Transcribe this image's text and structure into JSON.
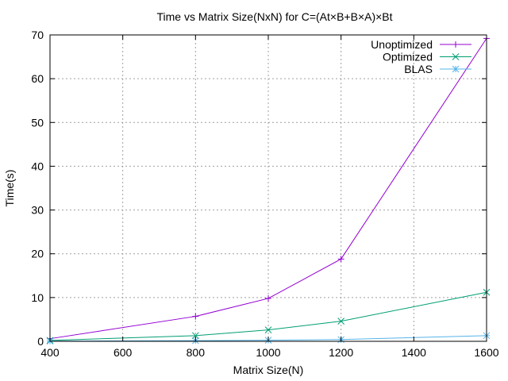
{
  "chart_data": {
    "type": "line",
    "title": "Time vs Matrix Size(NxN) for C=(At×B+B×A)×Bt",
    "xlabel": "Matrix Size(N)",
    "ylabel": "Time(s)",
    "xlim": [
      400,
      1600
    ],
    "ylim": [
      0,
      70
    ],
    "x_ticks": [
      400,
      600,
      800,
      1000,
      1200,
      1400,
      1600
    ],
    "y_ticks": [
      0,
      10,
      20,
      30,
      40,
      50,
      60,
      70
    ],
    "grid": true,
    "legend_position": "top-right",
    "series": [
      {
        "name": "Unoptimized",
        "color": "#9400d3",
        "marker": "plus",
        "x": [
          400,
          800,
          1000,
          1200,
          1600
        ],
        "values": [
          0.6,
          5.7,
          9.8,
          18.8,
          69.2
        ]
      },
      {
        "name": "Optimized",
        "color": "#009e73",
        "marker": "cross",
        "x": [
          400,
          800,
          1000,
          1200,
          1600
        ],
        "values": [
          0.2,
          1.3,
          2.6,
          4.6,
          11.2
        ]
      },
      {
        "name": "BLAS",
        "color": "#56b4e9",
        "marker": "star",
        "x": [
          400,
          800,
          1000,
          1200,
          1600
        ],
        "values": [
          0.05,
          0.15,
          0.25,
          0.4,
          1.3
        ]
      }
    ]
  }
}
